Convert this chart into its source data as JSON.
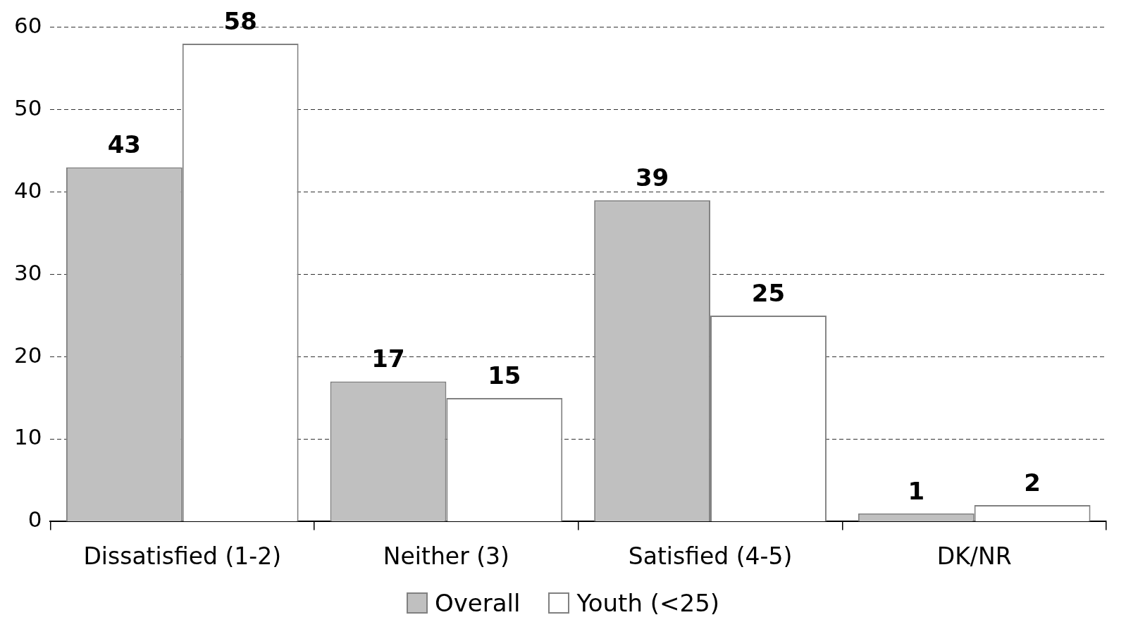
{
  "chart_data": {
    "type": "bar",
    "categories": [
      "Dissatisfied (1-2)",
      "Neither (3)",
      "Satisfied (4-5)",
      "DK/NR"
    ],
    "series": [
      {
        "name": "Overall",
        "color": "#c0c0c0",
        "values": [
          43,
          17,
          39,
          1
        ]
      },
      {
        "name": "Youth (<25)",
        "color": "#ffffff",
        "values": [
          58,
          15,
          25,
          2
        ]
      }
    ],
    "ylim": [
      0,
      60
    ],
    "yticks": [
      0,
      10,
      20,
      30,
      40,
      50,
      60
    ],
    "grid": "y",
    "legend": "bottom",
    "data_labels": true
  }
}
